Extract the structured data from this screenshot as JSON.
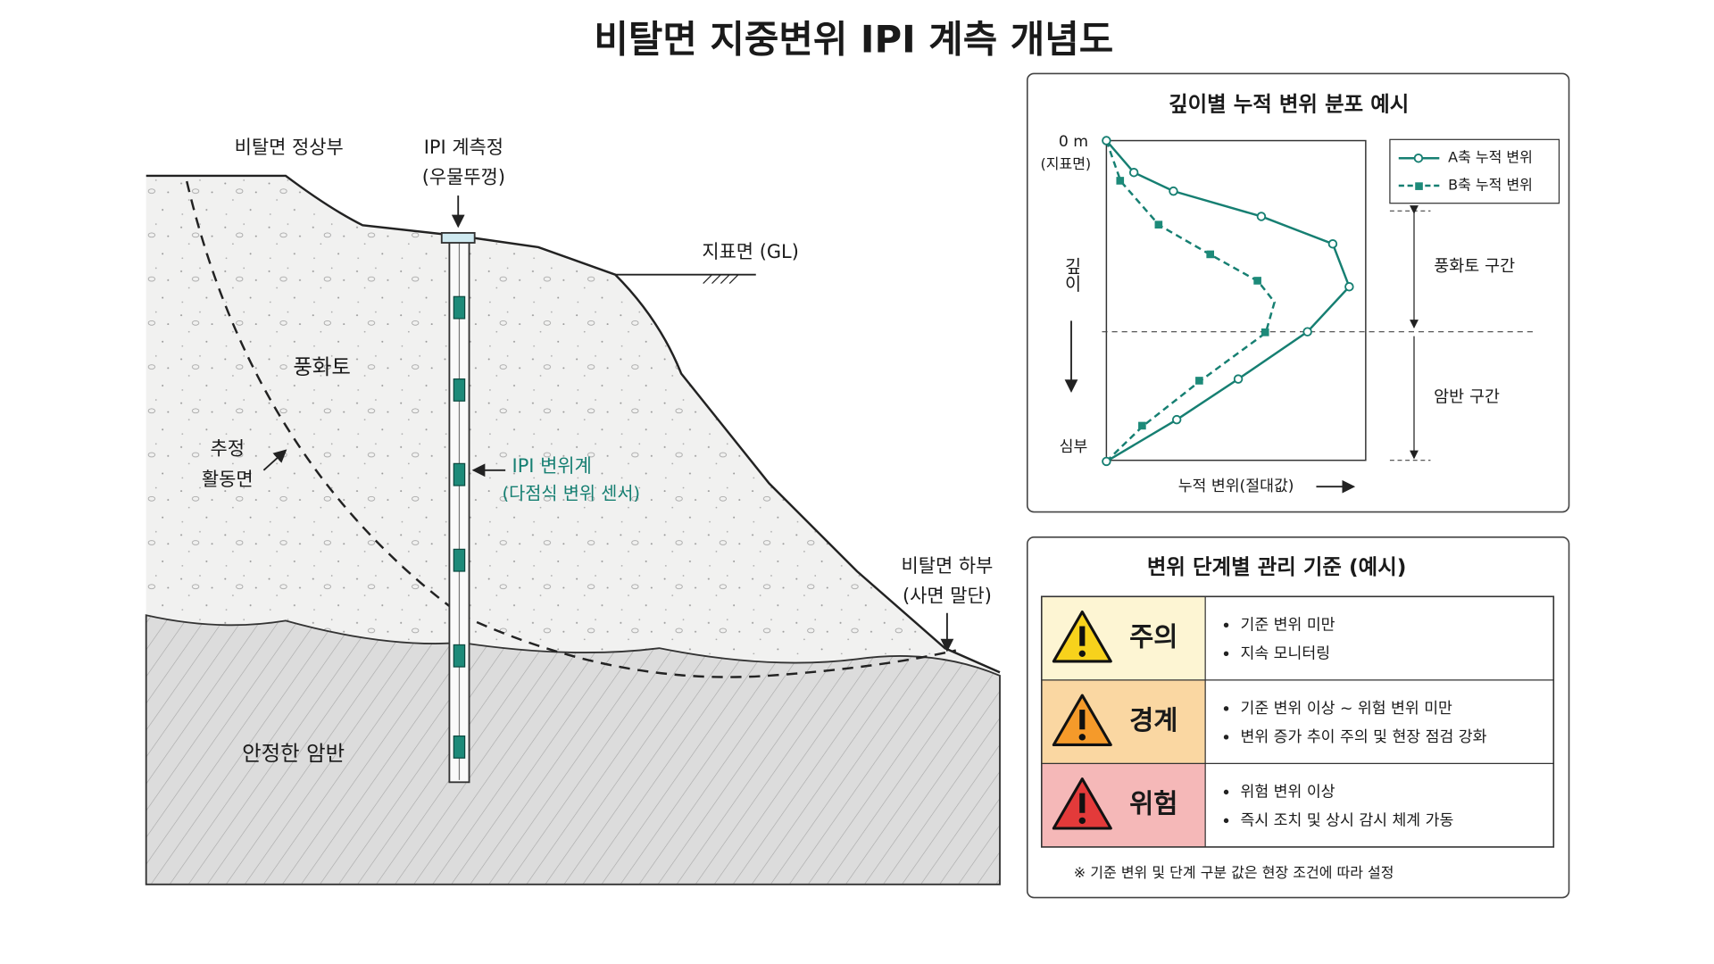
{
  "title": "비탈면 지중변위 IPI 계측 개념도",
  "section": {
    "crest": "비탈면 정상부",
    "well": {
      "name": "IPI 계측정",
      "cap": "(우물뚜껑)"
    },
    "ground_line": "지표면 (GL)",
    "weathered_soil": "풍화토",
    "slip_surface": [
      "추정",
      "활동면"
    ],
    "sensor": {
      "name": "IPI 변위계",
      "detail": "(다점식 변위 센서)"
    },
    "toe": [
      "비탈면 하부",
      "(사면 말단)"
    ],
    "bedrock": "안정한 암반"
  },
  "profile": {
    "title": "깊이별 누적 변위 분포 예시",
    "top_label": "0 m",
    "top_note": "(지표면)",
    "depth_label": "깊이",
    "bottom_label": "심부",
    "x_label": "누적 변위(절대값)",
    "legend": [
      "A축 누적 변위",
      "B축 누적 변위"
    ],
    "zones": [
      "풍화토 구간",
      "암반 구간"
    ]
  },
  "criteria": {
    "title": "변위 단계별 관리 기준 (예시)",
    "rows": [
      {
        "level": "주의",
        "items": [
          "기준 변위 미만",
          "지속 모니터링"
        ]
      },
      {
        "level": "경계",
        "items": [
          "기준 변위 이상 ~ 위험 변위 미만",
          "변위 증가 추이 주의 및 현장 점검 강화"
        ]
      },
      {
        "level": "위험",
        "items": [
          "위험 변위 이상",
          "즉시 조치 및 상시 감시 체계 가동"
        ]
      }
    ],
    "note": "※ 기준 변위 및 단계 구분 값은 현장 조건에 따라 설정"
  }
}
